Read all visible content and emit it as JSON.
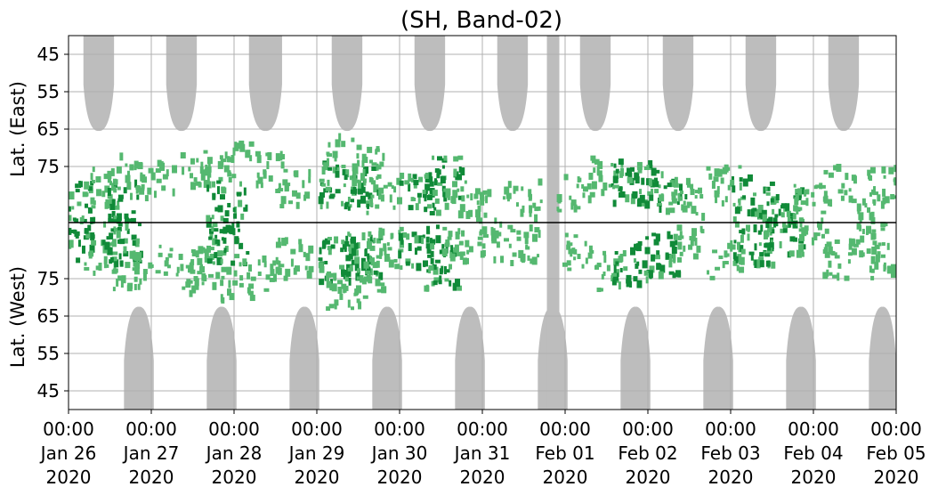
{
  "chart_data": {
    "type": "heatmap",
    "title": "(SH, Band-02)",
    "ylabel_top": "Lat. (East)",
    "ylabel_bottom": "Lat. (West)",
    "xlim": [
      "2020-01-26 00:00",
      "2020-02-05 00:00"
    ],
    "x_ticks": [
      {
        "time": "00:00",
        "date": "Jan 26",
        "year": "2020"
      },
      {
        "time": "00:00",
        "date": "Jan 27",
        "year": "2020"
      },
      {
        "time": "00:00",
        "date": "Jan 28",
        "year": "2020"
      },
      {
        "time": "00:00",
        "date": "Jan 29",
        "year": "2020"
      },
      {
        "time": "00:00",
        "date": "Jan 30",
        "year": "2020"
      },
      {
        "time": "00:00",
        "date": "Jan 31",
        "year": "2020"
      },
      {
        "time": "00:00",
        "date": "Feb 01",
        "year": "2020"
      },
      {
        "time": "00:00",
        "date": "Feb 02",
        "year": "2020"
      },
      {
        "time": "00:00",
        "date": "Feb 03",
        "year": "2020"
      },
      {
        "time": "00:00",
        "date": "Feb 04",
        "year": "2020"
      },
      {
        "time": "00:00",
        "date": "Feb 05",
        "year": "2020"
      }
    ],
    "y_ticks_east": [
      "45",
      "55",
      "65",
      "75"
    ],
    "y_ticks_west": [
      "75",
      "65",
      "55",
      "45"
    ],
    "grid": true,
    "colors": {
      "no_data": "#bdbdbd",
      "activity_strong": "#108a38",
      "activity_weak": "#55b870",
      "divider": "#000000",
      "grid": "#b0b0b0"
    },
    "no_data_east": [
      {
        "start_day": 0.18,
        "end_day": 0.55
      },
      {
        "start_day": 1.18,
        "end_day": 1.55
      },
      {
        "start_day": 2.18,
        "end_day": 2.58
      },
      {
        "start_day": 3.18,
        "end_day": 3.55
      },
      {
        "start_day": 4.18,
        "end_day": 4.55
      },
      {
        "start_day": 5.18,
        "end_day": 5.55
      },
      {
        "start_day": 6.18,
        "end_day": 6.55
      },
      {
        "start_day": 7.18,
        "end_day": 7.55
      },
      {
        "start_day": 8.18,
        "end_day": 8.55
      },
      {
        "start_day": 9.18,
        "end_day": 9.55
      }
    ],
    "no_data_west": [
      {
        "start_day": 0.67,
        "end_day": 1.03
      },
      {
        "start_day": 1.67,
        "end_day": 2.03
      },
      {
        "start_day": 2.67,
        "end_day": 3.03
      },
      {
        "start_day": 3.67,
        "end_day": 4.03
      },
      {
        "start_day": 4.67,
        "end_day": 5.03
      },
      {
        "start_day": 5.67,
        "end_day": 6.03
      },
      {
        "start_day": 6.67,
        "end_day": 7.03
      },
      {
        "start_day": 7.67,
        "end_day": 8.03
      },
      {
        "start_day": 8.67,
        "end_day": 9.03
      },
      {
        "start_day": 9.67,
        "end_day": 10.0
      }
    ],
    "no_data_full": [
      {
        "start_day": 5.78,
        "end_day": 5.93
      }
    ],
    "activity_clusters": [
      {
        "day": 0.05,
        "lat": 85,
        "intensity": "strong"
      },
      {
        "day": 0.35,
        "lat": 80,
        "intensity": "weak"
      },
      {
        "day": 0.62,
        "lat": 85,
        "intensity": "strong"
      },
      {
        "day": 0.65,
        "lat": 77,
        "intensity": "weak"
      },
      {
        "day": 1.05,
        "lat": 79,
        "intensity": "weak"
      },
      {
        "day": 1.5,
        "lat": 76,
        "intensity": "weak"
      },
      {
        "day": 1.65,
        "lat": 78,
        "intensity": "weak"
      },
      {
        "day": 1.9,
        "lat": 84,
        "intensity": "strong"
      },
      {
        "day": 2.0,
        "lat": 74,
        "intensity": "weak"
      },
      {
        "day": 2.45,
        "lat": 76,
        "intensity": "weak"
      },
      {
        "day": 2.7,
        "lat": 81,
        "intensity": "weak"
      },
      {
        "day": 3.25,
        "lat": 80,
        "intensity": "strong"
      },
      {
        "day": 3.3,
        "lat": 72,
        "intensity": "weak"
      },
      {
        "day": 3.5,
        "lat": 81,
        "intensity": "strong"
      },
      {
        "day": 3.6,
        "lat": 75,
        "intensity": "weak"
      },
      {
        "day": 3.8,
        "lat": 83,
        "intensity": "weak"
      },
      {
        "day": 4.2,
        "lat": 83,
        "intensity": "strong"
      },
      {
        "day": 4.5,
        "lat": 78,
        "intensity": "strong"
      },
      {
        "day": 4.7,
        "lat": 84,
        "intensity": "weak"
      },
      {
        "day": 5.1,
        "lat": 85,
        "intensity": "weak"
      },
      {
        "day": 5.5,
        "lat": 84,
        "intensity": "weak"
      },
      {
        "day": 6.1,
        "lat": 82,
        "intensity": "weak"
      },
      {
        "day": 6.5,
        "lat": 77,
        "intensity": "weak"
      },
      {
        "day": 6.8,
        "lat": 79,
        "intensity": "strong"
      },
      {
        "day": 7.2,
        "lat": 81,
        "intensity": "strong"
      },
      {
        "day": 7.45,
        "lat": 84,
        "intensity": "weak"
      },
      {
        "day": 7.9,
        "lat": 80,
        "intensity": "weak"
      },
      {
        "day": 8.25,
        "lat": 84,
        "intensity": "strong"
      },
      {
        "day": 8.6,
        "lat": 87,
        "intensity": "strong"
      },
      {
        "day": 8.95,
        "lat": 85,
        "intensity": "weak"
      },
      {
        "day": 9.3,
        "lat": 80,
        "intensity": "weak"
      },
      {
        "day": 9.65,
        "lat": 86,
        "intensity": "weak"
      },
      {
        "day": 9.85,
        "lat": 80,
        "intensity": "weak"
      }
    ]
  }
}
